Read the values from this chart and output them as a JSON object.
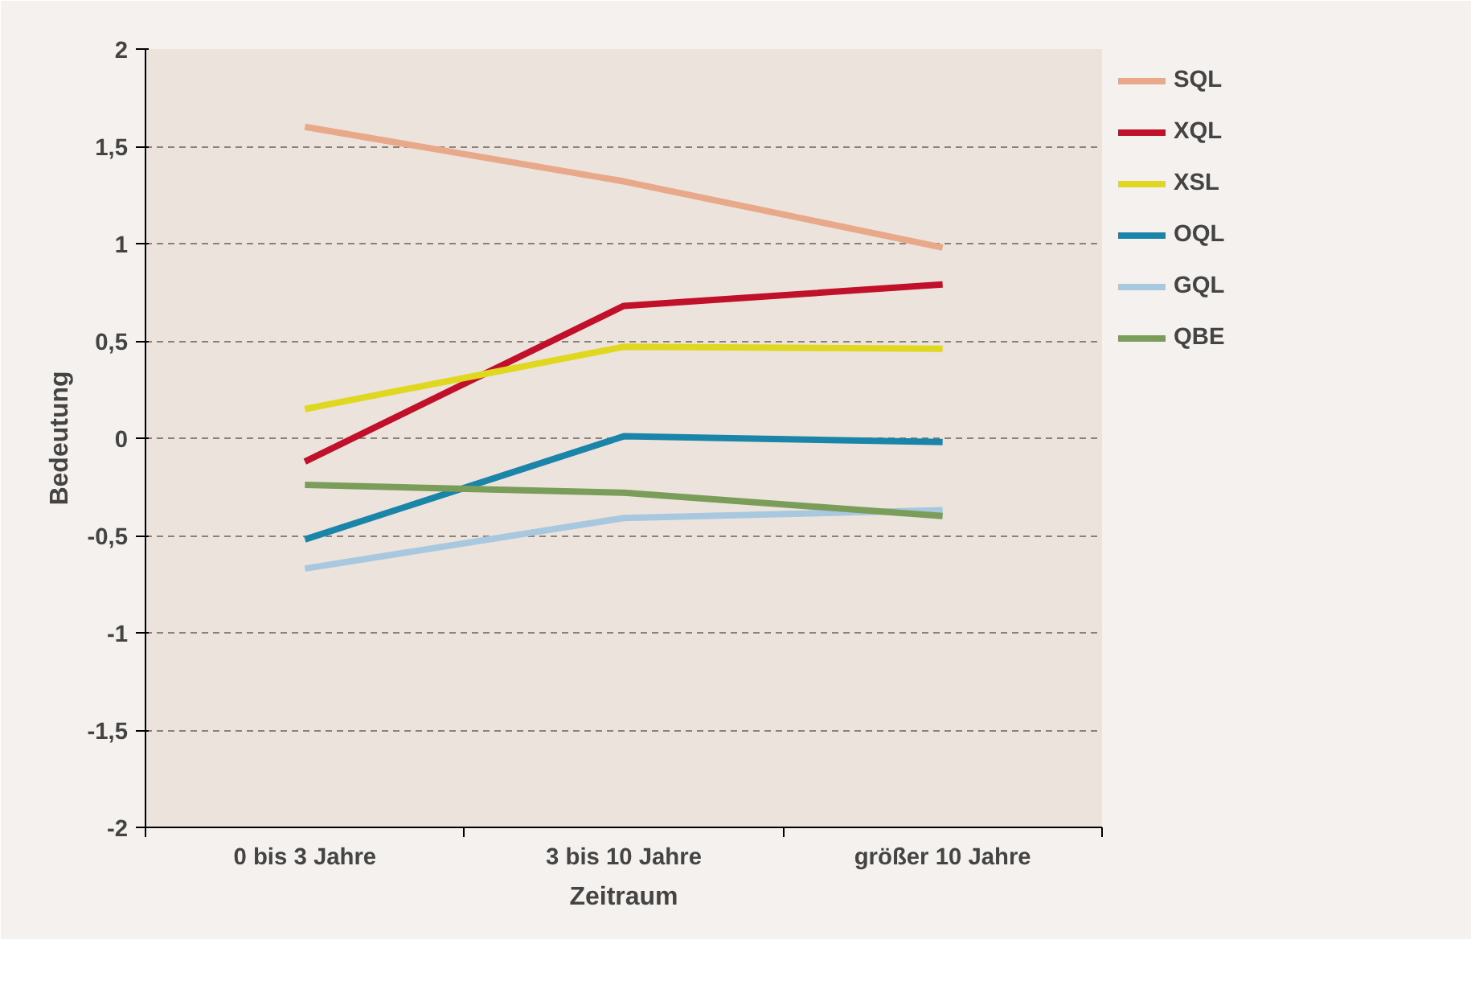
{
  "chart_data": {
    "type": "line",
    "xlabel": "Zeitraum",
    "ylabel": "Bedeutung",
    "categories": [
      "0 bis 3 Jahre",
      "3 bis 10 Jahre",
      "größer 10 Jahre"
    ],
    "ylim": [
      -2,
      2
    ],
    "yticks": [
      {
        "value": -2,
        "label": "-2"
      },
      {
        "value": -1.5,
        "label": "-1,5"
      },
      {
        "value": -1,
        "label": "-1"
      },
      {
        "value": -0.5,
        "label": "-0,5"
      },
      {
        "value": 0,
        "label": "0"
      },
      {
        "value": 0.5,
        "label": "0,5"
      },
      {
        "value": 1,
        "label": "1"
      },
      {
        "value": 1.5,
        "label": "1,5"
      },
      {
        "value": 2,
        "label": "2"
      }
    ],
    "grid": "y",
    "legend": "right",
    "marker": "none",
    "line_style": "solid",
    "series": [
      {
        "name": "SQL",
        "color": "#e8a98a",
        "values": [
          1.6,
          1.32,
          0.98
        ]
      },
      {
        "name": "XQL",
        "color": "#c0102a",
        "values": [
          -0.12,
          0.68,
          0.79
        ]
      },
      {
        "name": "XSL",
        "color": "#e0d820",
        "values": [
          0.15,
          0.47,
          0.46
        ]
      },
      {
        "name": "OQL",
        "color": "#1a85a8",
        "values": [
          -0.52,
          0.01,
          -0.02
        ]
      },
      {
        "name": "GQL",
        "color": "#a8c8e0",
        "values": [
          -0.67,
          -0.41,
          -0.37
        ]
      },
      {
        "name": "QBE",
        "color": "#7a9e5a",
        "values": [
          -0.24,
          -0.28,
          -0.4
        ]
      }
    ]
  }
}
